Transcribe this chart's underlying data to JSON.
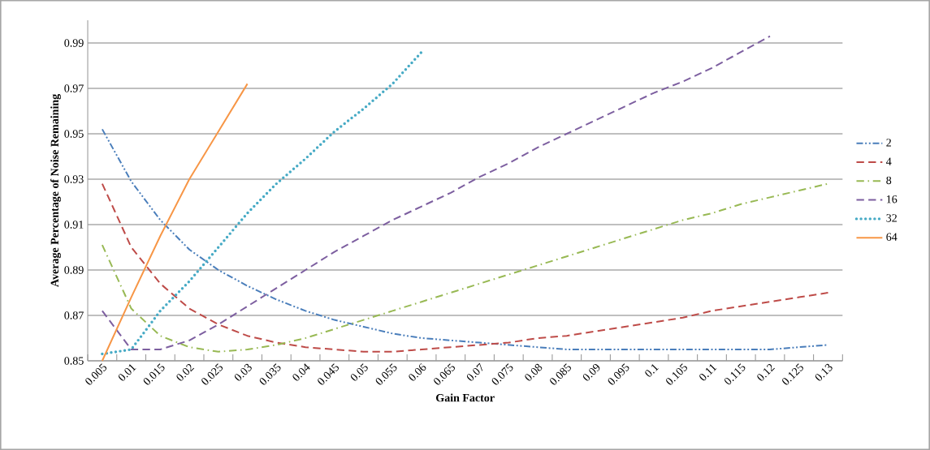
{
  "chart_data": {
    "type": "line",
    "xlabel": "Gain Factor",
    "ylabel": "Average Percentage of Noise Remaining",
    "categories": [
      "0.005",
      "0.01",
      "0.015",
      "0.02",
      "0.025",
      "0.03",
      "0.035",
      "0.04",
      "0.045",
      "0.05",
      "0.055",
      "0.06",
      "0.065",
      "0.07",
      "0.075",
      "0.08",
      "0.085",
      "0.09",
      "0.095",
      "0.1",
      "0.105",
      "0.11",
      "0.115",
      "0.12",
      "0.125",
      "0.13"
    ],
    "ylim": [
      0.85,
      1.0
    ],
    "yticks": [
      0.85,
      0.87,
      0.89,
      0.91,
      0.93,
      0.95,
      0.97,
      0.99
    ],
    "grid": "y",
    "legend": "right",
    "marker": "none",
    "series": [
      {
        "name": "2",
        "color": "#4a7ebb",
        "line_style": "dashdotdot",
        "values": [
          0.952,
          0.929,
          0.912,
          0.899,
          0.89,
          0.883,
          0.877,
          0.872,
          0.868,
          0.865,
          0.862,
          0.86,
          0.859,
          0.858,
          0.857,
          0.856,
          0.855,
          0.855,
          0.855,
          0.855,
          0.855,
          0.855,
          0.855,
          0.855,
          0.856,
          0.857
        ]
      },
      {
        "name": "4",
        "color": "#be4b48",
        "line_style": "dashed",
        "values": [
          0.928,
          0.9,
          0.884,
          0.873,
          0.866,
          0.861,
          0.858,
          0.856,
          0.855,
          0.854,
          0.854,
          0.855,
          0.856,
          0.857,
          0.858,
          0.86,
          0.861,
          0.863,
          0.865,
          0.867,
          0.869,
          0.872,
          0.874,
          0.876,
          0.878,
          0.88
        ]
      },
      {
        "name": "8",
        "color": "#98b954",
        "line_style": "dashdot",
        "values": [
          0.901,
          0.873,
          0.861,
          0.856,
          0.854,
          0.855,
          0.857,
          0.86,
          0.864,
          0.868,
          0.872,
          0.876,
          0.88,
          0.884,
          0.888,
          0.892,
          0.896,
          0.9,
          0.904,
          0.908,
          0.912,
          0.915,
          0.919,
          0.922,
          0.925,
          0.928
        ]
      },
      {
        "name": "16",
        "color": "#7d5fa0",
        "line_style": "dashed",
        "values": [
          0.872,
          0.855,
          0.855,
          0.859,
          0.866,
          0.874,
          0.882,
          0.89,
          0.898,
          0.905,
          0.912,
          0.918,
          0.924,
          0.931,
          0.937,
          0.944,
          0.95,
          0.956,
          0.962,
          0.968,
          0.973,
          0.979,
          0.986,
          0.993,
          null,
          null
        ]
      },
      {
        "name": "32",
        "color": "#46aac5",
        "line_style": "dotted",
        "values": [
          0.853,
          0.855,
          0.872,
          0.885,
          0.9,
          0.915,
          0.928,
          0.939,
          0.951,
          0.961,
          0.972,
          0.986,
          null,
          null,
          null,
          null,
          null,
          null,
          null,
          null,
          null,
          null,
          null,
          null,
          null,
          null
        ]
      },
      {
        "name": "64",
        "color": "#f79646",
        "line_style": "solid",
        "values": [
          0.85,
          0.878,
          0.905,
          0.93,
          0.951,
          0.972,
          null,
          null,
          null,
          null,
          null,
          null,
          null,
          null,
          null,
          null,
          null,
          null,
          null,
          null,
          null,
          null,
          null,
          null,
          null,
          null
        ]
      }
    ]
  }
}
